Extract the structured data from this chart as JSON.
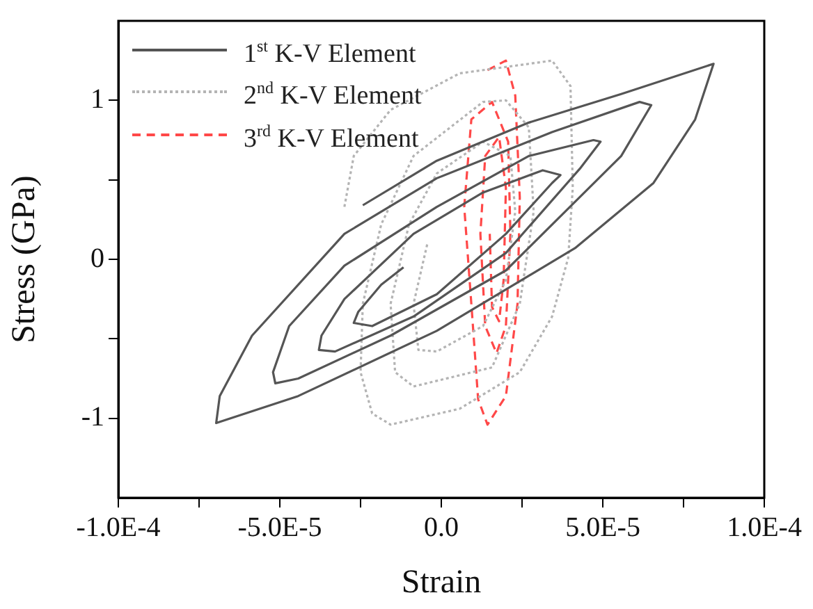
{
  "chart_data": {
    "type": "line",
    "xlabel": "Strain",
    "ylabel": "Stress (GPa)",
    "xlim": [
      -0.0001,
      0.0001
    ],
    "ylim": [
      -1.5,
      1.5
    ],
    "xticks": [
      {
        "value": -0.0001,
        "label": "-1.0E-4"
      },
      {
        "value": -7.5e-05,
        "label": null
      },
      {
        "value": -5e-05,
        "label": "-5.0E-5"
      },
      {
        "value": -2.5e-05,
        "label": null
      },
      {
        "value": 0,
        "label": "0.0"
      },
      {
        "value": 2.5e-05,
        "label": null
      },
      {
        "value": 5e-05,
        "label": "5.0E-5"
      },
      {
        "value": 7.5e-05,
        "label": null
      },
      {
        "value": 0.0001,
        "label": "1.0E-4"
      }
    ],
    "yticks": [
      {
        "value": -1,
        "label": "-1"
      },
      {
        "value": -0.5,
        "label": null
      },
      0,
      {
        "value": 0.5,
        "label": null
      },
      1
    ],
    "grid": false,
    "legend": "top left",
    "marker": "none",
    "series": [
      {
        "name": "1$^{st}$ K-V Element",
        "color": "#555555",
        "line_style": "solid",
        "x": [
          -1.17e-05,
          -1.86e-05,
          -2.57e-05,
          -2.71e-05,
          -2.14e-05,
          -1.4e-06,
          2e-05,
          3.43e-05,
          3.69e-05,
          3.14e-05,
          1.29e-05,
          -8.6e-06,
          -3e-05,
          -3.71e-05,
          -3.79e-05,
          -3.29e-05,
          -8.6e-06,
          2e-05,
          4.29e-05,
          4.93e-05,
          4.71e-05,
          2.71e-05,
          -1.4e-06,
          -3e-05,
          -4.71e-05,
          -5.21e-05,
          -5.14e-05,
          -4.43e-05,
          -1.57e-05,
          2e-05,
          5.57e-05,
          6.5e-05,
          6.14e-05,
          3.43e-05,
          -1.4e-06,
          -3e-05,
          -5.86e-05,
          -6.86e-05,
          -6.97e-05,
          -4.43e-05,
          -1.4e-06,
          4.14e-05,
          6.57e-05,
          7.86e-05,
          8.43e-05,
          5.57e-05,
          2.71e-05,
          -1.4e-06,
          -2.43e-05
        ],
        "values": [
          -0.05,
          -0.16,
          -0.33,
          -0.4,
          -0.42,
          -0.22,
          0.16,
          0.48,
          0.53,
          0.56,
          0.42,
          0.16,
          -0.25,
          -0.48,
          -0.57,
          -0.58,
          -0.36,
          0.04,
          0.57,
          0.74,
          0.75,
          0.65,
          0.33,
          -0.04,
          -0.42,
          -0.71,
          -0.78,
          -0.75,
          -0.48,
          -0.07,
          0.65,
          0.97,
          0.99,
          0.8,
          0.51,
          0.16,
          -0.48,
          -0.86,
          -1.03,
          -0.86,
          -0.45,
          0.07,
          0.48,
          0.88,
          1.23,
          1.04,
          0.86,
          0.62,
          0.34
        ]
      },
      {
        "name": "2$^{nd}$ K-V Element",
        "color": "#b4b4b4",
        "line_style": "dotted",
        "x": [
          -3e-05,
          -2.71e-05,
          -1.57e-05,
          5.7e-06,
          3.43e-05,
          4e-05,
          4.07e-05,
          3.93e-05,
          3.43e-05,
          2.43e-05,
          5.7e-06,
          -1.57e-05,
          -2.14e-05,
          -2.5e-05,
          -2.43e-05,
          -1.86e-05,
          -8.6e-06,
          1.29e-05,
          2e-05,
          2.71e-05,
          2.86e-05,
          2.43e-05,
          1.57e-05,
          -8.6e-06,
          -1.43e-05,
          -1.57e-05,
          -1e-05,
          -1.4e-06,
          1.29e-05,
          2.14e-05,
          2.29e-05,
          2e-05,
          1.29e-05,
          -1.4e-06,
          -7.1e-06,
          -8.6e-06,
          -4.3e-06
        ],
        "values": [
          0.33,
          0.65,
          0.94,
          1.17,
          1.25,
          1.09,
          0.45,
          0.01,
          -0.36,
          -0.71,
          -0.94,
          -1.04,
          -0.97,
          -0.71,
          -0.28,
          0.22,
          0.65,
          0.99,
          1.0,
          0.83,
          0.3,
          -0.28,
          -0.68,
          -0.8,
          -0.71,
          -0.28,
          0.22,
          0.54,
          0.74,
          0.65,
          0.3,
          -0.13,
          -0.42,
          -0.58,
          -0.57,
          -0.28,
          0.1
        ]
      },
      {
        "name": "3$^{rd}$ K-V Element",
        "color": "#ff4848",
        "line_style": "dashed",
        "x": [
          1.43e-05,
          2e-05,
          2.29e-05,
          2.43e-05,
          2.36e-05,
          2e-05,
          1.43e-05,
          1.14e-05,
          9.3e-06,
          7.1e-06,
          9.3e-06,
          1.57e-05,
          2.07e-05,
          2.14e-05,
          2e-05,
          1.71e-05,
          1.36e-05,
          1.21e-05,
          1.36e-05,
          1.79e-05,
          2e-05,
          1.93e-05,
          1.79e-05,
          1.57e-05,
          1.5e-05
        ],
        "values": [
          1.19,
          1.25,
          1.03,
          0.39,
          -0.28,
          -0.86,
          -1.04,
          -0.88,
          -0.28,
          0.33,
          0.88,
          0.99,
          0.74,
          0.16,
          -0.42,
          -0.59,
          -0.42,
          0.16,
          0.65,
          0.77,
          0.45,
          -0.13,
          -0.39,
          -0.3,
          0.16
        ]
      }
    ]
  }
}
